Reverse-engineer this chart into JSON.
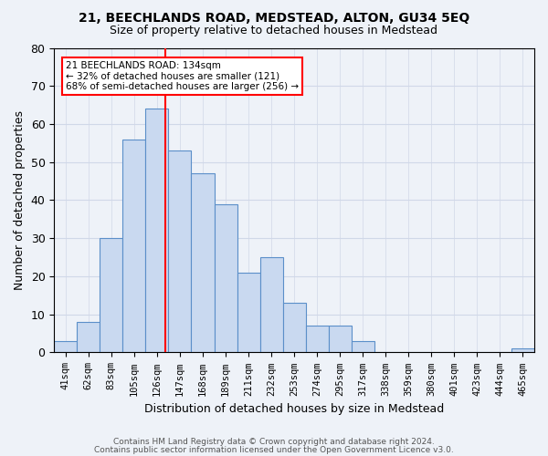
{
  "title1": "21, BEECHLANDS ROAD, MEDSTEAD, ALTON, GU34 5EQ",
  "title2": "Size of property relative to detached houses in Medstead",
  "xlabel": "Distribution of detached houses by size in Medstead",
  "ylabel": "Number of detached properties",
  "bar_labels": [
    "41sqm",
    "62sqm",
    "83sqm",
    "105sqm",
    "126sqm",
    "147sqm",
    "168sqm",
    "189sqm",
    "211sqm",
    "232sqm",
    "253sqm",
    "274sqm",
    "295sqm",
    "317sqm",
    "338sqm",
    "359sqm",
    "380sqm",
    "401sqm",
    "423sqm",
    "444sqm",
    "465sqm"
  ],
  "bar_values": [
    3,
    8,
    30,
    56,
    64,
    53,
    47,
    39,
    21,
    25,
    13,
    7,
    7,
    3,
    0,
    0,
    0,
    0,
    0,
    0,
    1
  ],
  "bar_color": "#c9d9f0",
  "bar_edge_color": "#5b8fc9",
  "property_line_x": 4,
  "bin_width": 1,
  "annotation_text": "21 BEECHLANDS ROAD: 134sqm\n← 32% of detached houses are smaller (121)\n68% of semi-detached houses are larger (256) →",
  "annotation_box_color": "white",
  "annotation_box_edge_color": "red",
  "vline_color": "red",
  "ylim": [
    0,
    80
  ],
  "yticks": [
    0,
    10,
    20,
    30,
    40,
    50,
    60,
    70,
    80
  ],
  "grid_color": "#d0d8e8",
  "background_color": "#eef2f8",
  "footer1": "Contains HM Land Registry data © Crown copyright and database right 2024.",
  "footer2": "Contains public sector information licensed under the Open Government Licence v3.0."
}
